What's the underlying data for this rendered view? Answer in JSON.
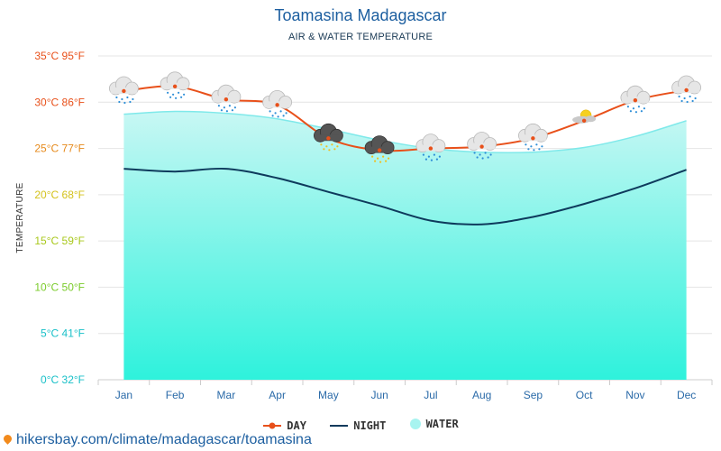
{
  "header": {
    "title": "Toamasina Madagascar",
    "subtitle": "AIR & WATER TEMPERATURE"
  },
  "legend": {
    "day": "DAY",
    "night": "NIGHT",
    "water": "WATER"
  },
  "footer": {
    "link": "hikersbay.com/climate/madagascar/toamasina"
  },
  "colors": {
    "day": "#e8501a",
    "night": "#0e3a5c",
    "water_top": "#c8f7f4",
    "water_bottom": "#2ef2dc",
    "water_line": "#7fe9ea"
  },
  "chart_data": {
    "type": "line",
    "categories": [
      "Jan",
      "Feb",
      "Mar",
      "Apr",
      "May",
      "Jun",
      "Jul",
      "Aug",
      "Sep",
      "Oct",
      "Nov",
      "Dec"
    ],
    "ylabel": "TEMPERATURE",
    "ylim": [
      0,
      35
    ],
    "y_ticks": [
      {
        "value": 0,
        "label": "0°C 32°F",
        "color": "#19c0c8"
      },
      {
        "value": 5,
        "label": "5°C 41°F",
        "color": "#19c0c8"
      },
      {
        "value": 10,
        "label": "10°C 50°F",
        "color": "#7acb2a"
      },
      {
        "value": 15,
        "label": "15°C 59°F",
        "color": "#a9c81c"
      },
      {
        "value": 20,
        "label": "20°C 68°F",
        "color": "#d4c21c"
      },
      {
        "value": 25,
        "label": "25°C 77°F",
        "color": "#e68a1c"
      },
      {
        "value": 30,
        "label": "30°C 86°F",
        "color": "#e8501a"
      },
      {
        "value": 35,
        "label": "35°C 95°F",
        "color": "#e8501a"
      }
    ],
    "grid": true,
    "legend_position": "bottom",
    "series": [
      {
        "name": "DAY",
        "values": [
          31.2,
          31.7,
          30.3,
          29.7,
          26.1,
          24.8,
          25.0,
          25.2,
          26.1,
          28.0,
          30.2,
          31.3
        ]
      },
      {
        "name": "NIGHT",
        "values": [
          22.8,
          22.5,
          22.8,
          21.8,
          20.3,
          18.8,
          17.2,
          16.8,
          17.6,
          19.0,
          20.7,
          22.7
        ]
      },
      {
        "name": "WATER",
        "values": [
          28.7,
          29.0,
          28.8,
          28.2,
          27.1,
          25.9,
          25.0,
          24.6,
          24.6,
          25.1,
          26.3,
          28.0
        ]
      }
    ],
    "weather_icons": [
      "cloud-rain-icon",
      "cloud-rain-icon",
      "cloud-rain-icon",
      "cloud-rain-icon",
      "storm-cloud-icon",
      "storm-cloud-icon",
      "cloud-rain-icon",
      "cloud-rain-icon",
      "cloud-rain-icon",
      "sun-cloud-icon",
      "cloud-rain-icon",
      "cloud-rain-icon"
    ]
  }
}
